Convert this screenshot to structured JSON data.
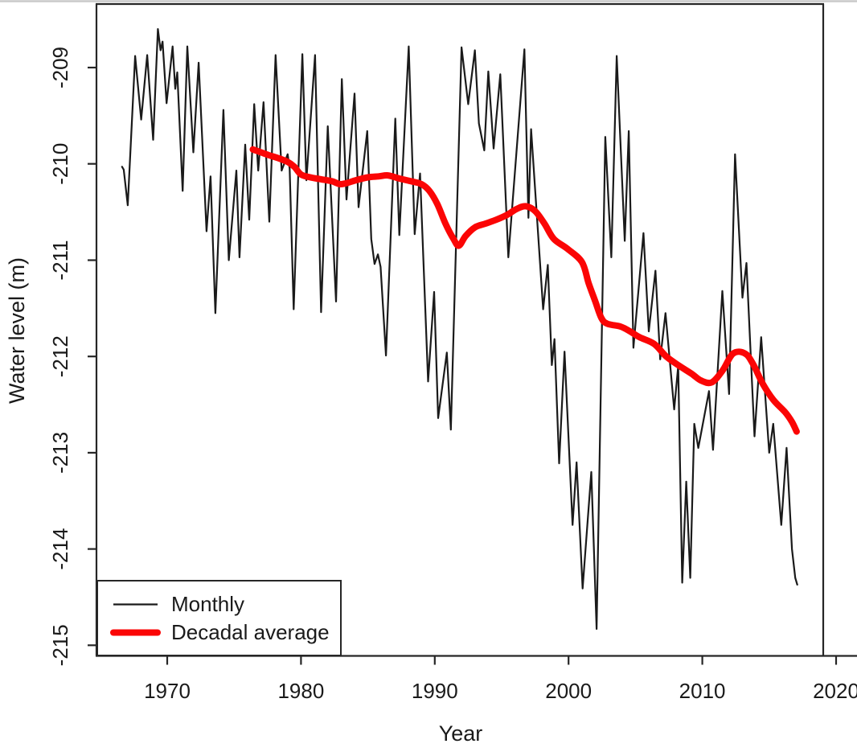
{
  "figure_description": "Line chart of lake water level vs year with monthly series and decadal average",
  "axes": {
    "xlabel": "Year",
    "ylabel": "Water level (m)",
    "x_tick_labels": [
      "1970",
      "1980",
      "1990",
      "2000",
      "2010",
      "2020"
    ],
    "y_tick_labels": [
      "-215",
      "-214",
      "-213",
      "-212",
      "-211",
      "-210",
      "-209"
    ]
  },
  "legend": {
    "items": [
      {
        "label": "Monthly",
        "color": "#1a1a1a",
        "line_width": 2.2
      },
      {
        "label": "Decadal average",
        "color": "#fb0505",
        "line_width": 8
      }
    ]
  },
  "colors": {
    "monthly_line": "#1a1a1a",
    "decadal_line": "#fb0505",
    "axis": "#262626",
    "window_edge": "#c9c9c9",
    "background": "#ffffff"
  },
  "chart_data": {
    "type": "line",
    "title": "",
    "xlabel": "Year",
    "ylabel": "Water level (m)",
    "xlim": [
      1964.71,
      2019.04
    ],
    "ylim": [
      -215.11,
      -208.34
    ],
    "x_ticks": [
      1970,
      1980,
      1990,
      2000,
      2010,
      2020
    ],
    "y_ticks": [
      -215,
      -214,
      -213,
      -212,
      -211,
      -210,
      -209
    ],
    "grid": false,
    "legend_position": "bottom-left",
    "values_note": "values read from plot, approximate",
    "series": [
      {
        "name": "Monthly",
        "color": "#1a1a1a",
        "line_width": 2.2,
        "smooth": false,
        "points": [
          [
            1966.62,
            -210.03
          ],
          [
            1966.75,
            -210.06
          ],
          [
            1967.05,
            -210.43
          ],
          [
            1967.6,
            -208.88
          ],
          [
            1968.05,
            -209.54
          ],
          [
            1968.5,
            -208.87
          ],
          [
            1968.95,
            -209.75
          ],
          [
            1969.3,
            -208.6
          ],
          [
            1969.5,
            -208.82
          ],
          [
            1969.65,
            -208.73
          ],
          [
            1969.95,
            -209.37
          ],
          [
            1970.4,
            -208.78
          ],
          [
            1970.6,
            -209.22
          ],
          [
            1970.75,
            -209.05
          ],
          [
            1971.15,
            -210.28
          ],
          [
            1971.5,
            -208.78
          ],
          [
            1971.95,
            -209.88
          ],
          [
            1972.35,
            -208.95
          ],
          [
            1972.94,
            -210.7
          ],
          [
            1973.24,
            -210.13
          ],
          [
            1973.6,
            -211.55
          ],
          [
            1974.2,
            -209.44
          ],
          [
            1974.6,
            -211.0
          ],
          [
            1975.17,
            -210.07
          ],
          [
            1975.4,
            -210.97
          ],
          [
            1975.83,
            -209.8
          ],
          [
            1976.13,
            -210.58
          ],
          [
            1976.5,
            -209.38
          ],
          [
            1976.8,
            -210.07
          ],
          [
            1977.2,
            -209.36
          ],
          [
            1977.63,
            -210.6
          ],
          [
            1978.1,
            -208.87
          ],
          [
            1978.55,
            -210.07
          ],
          [
            1979.0,
            -209.9
          ],
          [
            1979.15,
            -210.05
          ],
          [
            1979.45,
            -211.51
          ],
          [
            1980.1,
            -208.86
          ],
          [
            1980.4,
            -210.17
          ],
          [
            1981.05,
            -208.87
          ],
          [
            1981.5,
            -211.54
          ],
          [
            1982.0,
            -209.61
          ],
          [
            1982.62,
            -211.43
          ],
          [
            1983.05,
            -209.12
          ],
          [
            1983.4,
            -210.37
          ],
          [
            1984.0,
            -209.27
          ],
          [
            1984.3,
            -210.45
          ],
          [
            1984.95,
            -209.66
          ],
          [
            1985.25,
            -210.78
          ],
          [
            1985.5,
            -211.04
          ],
          [
            1985.75,
            -210.94
          ],
          [
            1985.95,
            -211.07
          ],
          [
            1986.35,
            -211.99
          ],
          [
            1987.05,
            -209.53
          ],
          [
            1987.35,
            -210.74
          ],
          [
            1988.05,
            -208.78
          ],
          [
            1988.5,
            -210.73
          ],
          [
            1988.9,
            -210.1
          ],
          [
            1989.5,
            -212.26
          ],
          [
            1989.95,
            -211.33
          ],
          [
            1990.25,
            -212.64
          ],
          [
            1990.9,
            -211.96
          ],
          [
            1991.2,
            -212.76
          ],
          [
            1992.0,
            -208.79
          ],
          [
            1992.5,
            -209.38
          ],
          [
            1993.0,
            -208.82
          ],
          [
            1993.3,
            -209.58
          ],
          [
            1993.7,
            -209.86
          ],
          [
            1994.0,
            -209.04
          ],
          [
            1994.4,
            -209.84
          ],
          [
            1994.9,
            -209.07
          ],
          [
            1995.5,
            -210.97
          ],
          [
            1996.7,
            -208.81
          ],
          [
            1997.0,
            -210.56
          ],
          [
            1997.2,
            -209.64
          ],
          [
            1998.1,
            -211.51
          ],
          [
            1998.45,
            -211.05
          ],
          [
            1998.75,
            -212.09
          ],
          [
            1998.95,
            -211.82
          ],
          [
            1999.3,
            -213.11
          ],
          [
            1999.7,
            -211.95
          ],
          [
            2000.3,
            -213.75
          ],
          [
            2000.6,
            -213.1
          ],
          [
            2001.05,
            -214.41
          ],
          [
            2001.7,
            -213.2
          ],
          [
            2002.1,
            -214.83
          ],
          [
            2002.75,
            -209.72
          ],
          [
            2003.2,
            -210.97
          ],
          [
            2003.6,
            -208.88
          ],
          [
            2004.2,
            -210.8
          ],
          [
            2004.5,
            -209.66
          ],
          [
            2004.85,
            -211.91
          ],
          [
            2005.6,
            -210.72
          ],
          [
            2006.0,
            -211.74
          ],
          [
            2006.5,
            -211.11
          ],
          [
            2006.85,
            -212.03
          ],
          [
            2007.25,
            -211.55
          ],
          [
            2007.9,
            -212.55
          ],
          [
            2008.2,
            -212.1
          ],
          [
            2008.5,
            -214.35
          ],
          [
            2008.8,
            -213.3
          ],
          [
            2009.1,
            -214.3
          ],
          [
            2009.4,
            -212.7
          ],
          [
            2009.7,
            -212.95
          ],
          [
            2010.5,
            -212.36
          ],
          [
            2010.8,
            -212.97
          ],
          [
            2011.5,
            -211.32
          ],
          [
            2012.0,
            -212.39
          ],
          [
            2012.45,
            -209.9
          ],
          [
            2013.0,
            -211.39
          ],
          [
            2013.3,
            -211.03
          ],
          [
            2013.9,
            -212.83
          ],
          [
            2014.4,
            -211.8
          ],
          [
            2015.0,
            -213.0
          ],
          [
            2015.3,
            -212.7
          ],
          [
            2015.9,
            -213.75
          ],
          [
            2016.3,
            -212.95
          ],
          [
            2016.7,
            -214.0
          ],
          [
            2016.95,
            -214.3
          ],
          [
            2017.1,
            -214.37
          ]
        ]
      },
      {
        "name": "Decadal average",
        "color": "#fb0505",
        "line_width": 8,
        "smooth": true,
        "points": [
          [
            1976.4,
            -209.85
          ],
          [
            1977.0,
            -209.88
          ],
          [
            1977.6,
            -209.91
          ],
          [
            1978.3,
            -209.94
          ],
          [
            1979.0,
            -209.98
          ],
          [
            1979.5,
            -210.03
          ],
          [
            1980.0,
            -210.11
          ],
          [
            1980.7,
            -210.14
          ],
          [
            1981.5,
            -210.16
          ],
          [
            1982.3,
            -210.18
          ],
          [
            1982.9,
            -210.21
          ],
          [
            1983.4,
            -210.2
          ],
          [
            1984.1,
            -210.17
          ],
          [
            1985.0,
            -210.14
          ],
          [
            1985.8,
            -210.13
          ],
          [
            1986.5,
            -210.12
          ],
          [
            1987.3,
            -210.15
          ],
          [
            1988.2,
            -210.18
          ],
          [
            1989.0,
            -210.21
          ],
          [
            1989.6,
            -210.28
          ],
          [
            1990.2,
            -210.42
          ],
          [
            1990.8,
            -210.62
          ],
          [
            1991.4,
            -210.78
          ],
          [
            1991.8,
            -210.85
          ],
          [
            1992.3,
            -210.75
          ],
          [
            1993.0,
            -210.66
          ],
          [
            1993.8,
            -210.62
          ],
          [
            1994.6,
            -210.58
          ],
          [
            1995.4,
            -210.53
          ],
          [
            1996.1,
            -210.47
          ],
          [
            1996.8,
            -210.44
          ],
          [
            1997.5,
            -210.49
          ],
          [
            1998.2,
            -210.62
          ],
          [
            1998.9,
            -210.78
          ],
          [
            1999.9,
            -210.88
          ],
          [
            2001.0,
            -211.02
          ],
          [
            2001.5,
            -211.24
          ],
          [
            2002.0,
            -211.43
          ],
          [
            2002.45,
            -211.6
          ],
          [
            2002.9,
            -211.66
          ],
          [
            2003.9,
            -211.69
          ],
          [
            2004.6,
            -211.74
          ],
          [
            2005.3,
            -211.8
          ],
          [
            2006.4,
            -211.87
          ],
          [
            2007.3,
            -212.0
          ],
          [
            2008.3,
            -212.1
          ],
          [
            2009.2,
            -212.18
          ],
          [
            2009.9,
            -212.25
          ],
          [
            2010.7,
            -212.27
          ],
          [
            2011.5,
            -212.15
          ],
          [
            2012.3,
            -211.97
          ],
          [
            2013.2,
            -211.97
          ],
          [
            2013.8,
            -212.08
          ],
          [
            2014.5,
            -212.28
          ],
          [
            2015.3,
            -212.45
          ],
          [
            2016.2,
            -212.58
          ],
          [
            2016.7,
            -212.68
          ],
          [
            2017.05,
            -212.78
          ]
        ]
      }
    ]
  }
}
